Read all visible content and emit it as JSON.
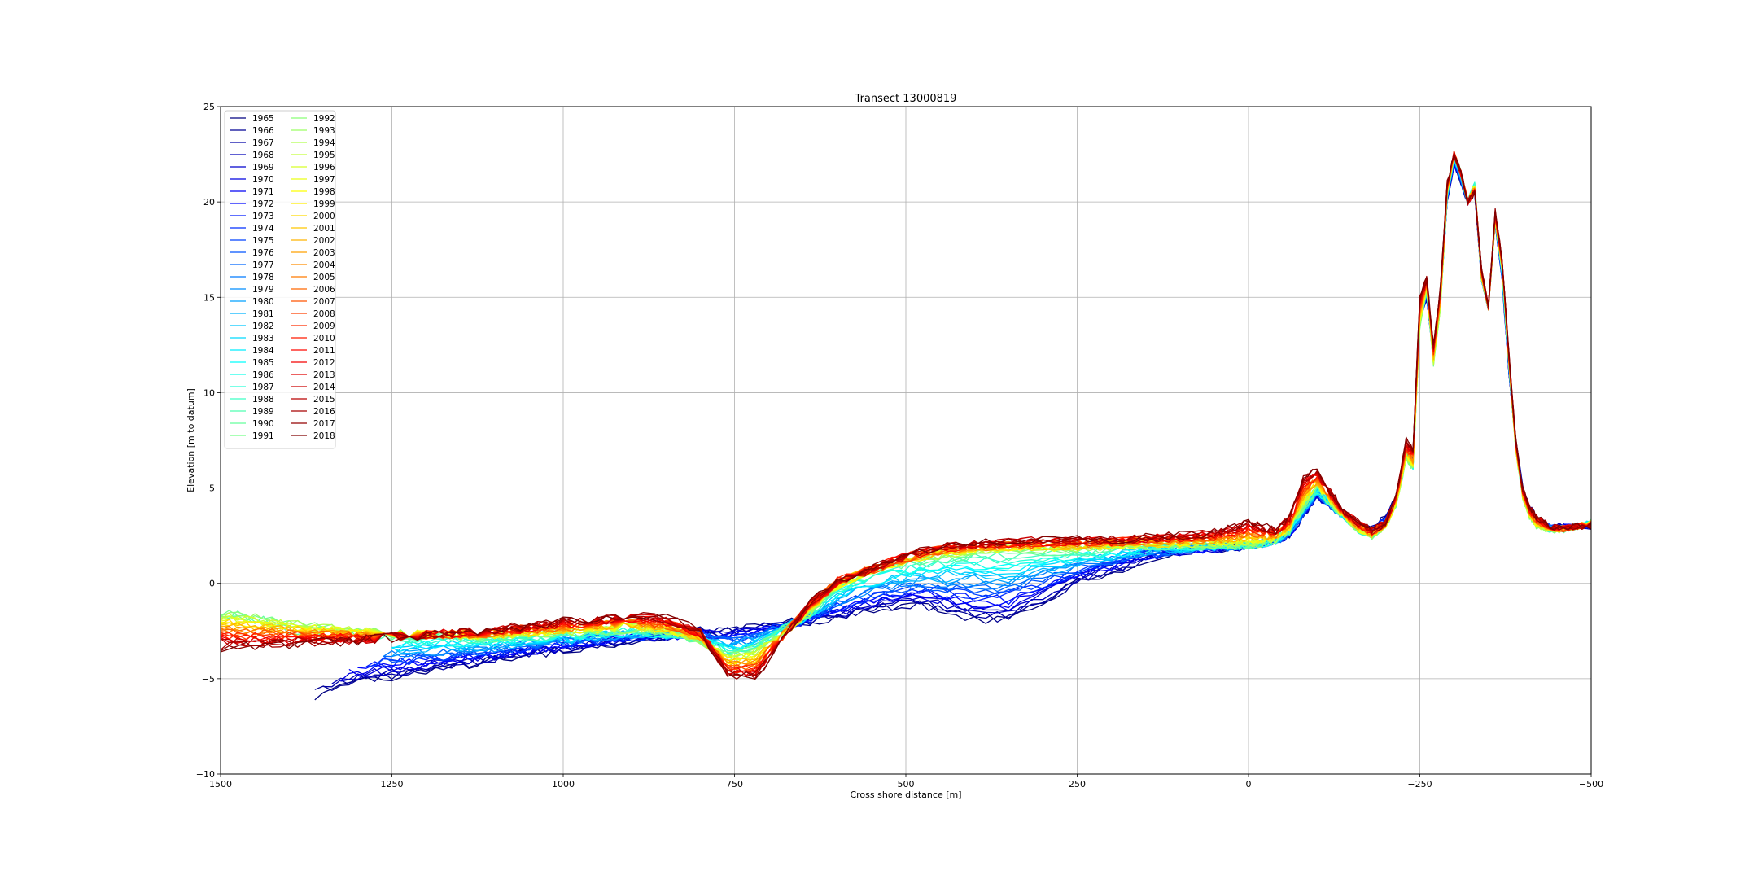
{
  "chart_data": {
    "type": "line",
    "title": "Transect 13000819",
    "xlabel": "Cross shore distance [m]",
    "ylabel": "Elevation [m to datum]",
    "xlim": [
      1500,
      -500
    ],
    "ylim": [
      -10,
      25
    ],
    "x_inverted": true,
    "xticks": [
      1500,
      1250,
      1000,
      750,
      500,
      250,
      0,
      -250,
      -500
    ],
    "xtick_labels": [
      "1500",
      "1250",
      "1000",
      "750",
      "500",
      "250",
      "0",
      "−250",
      "−500"
    ],
    "yticks": [
      -10,
      -5,
      0,
      5,
      10,
      15,
      20,
      25
    ],
    "ytick_labels": [
      "−10",
      "−5",
      "0",
      "5",
      "10",
      "15",
      "20",
      "25"
    ],
    "grid": true,
    "legend_position": "top-left",
    "legend_columns": 2,
    "colormap": "jet",
    "years": [
      1965,
      1966,
      1967,
      1968,
      1969,
      1970,
      1971,
      1972,
      1973,
      1974,
      1975,
      1976,
      1977,
      1978,
      1979,
      1980,
      1981,
      1982,
      1983,
      1984,
      1985,
      1986,
      1987,
      1988,
      1989,
      1990,
      1991,
      1992,
      1993,
      1994,
      1995,
      1996,
      1997,
      1998,
      1999,
      2000,
      2001,
      2002,
      2003,
      2004,
      2005,
      2006,
      2007,
      2008,
      2009,
      2010,
      2011,
      2012,
      2013,
      2014,
      2015,
      2016,
      2017,
      2018
    ],
    "reference_profiles": {
      "x": [
        1500,
        1400,
        1300,
        1200,
        1100,
        1000,
        900,
        850,
        800,
        760,
        720,
        680,
        640,
        600,
        560,
        520,
        480,
        440,
        400,
        350,
        300,
        250,
        200,
        150,
        100,
        50,
        20,
        0,
        -20,
        -40,
        -60,
        -80,
        -100,
        -120,
        -140,
        -160,
        -180,
        -200,
        -215,
        -230,
        -240,
        -250,
        -260,
        -270,
        -280,
        -290,
        -300,
        -310,
        -320,
        -330,
        -340,
        -350,
        -360,
        -370,
        -380,
        -390,
        -400,
        -410,
        -420,
        -440,
        -460,
        -480,
        -500
      ],
      "early": [
        null,
        -6.3,
        -5.2,
        -4.6,
        -4.0,
        -3.5,
        -3.0,
        -2.8,
        -2.5,
        -2.5,
        -2.3,
        -2.1,
        -2.0,
        -1.8,
        -1.5,
        -1.3,
        -1.2,
        -1.5,
        -1.8,
        -2.0,
        -1.0,
        0.0,
        0.6,
        1.2,
        1.6,
        1.8,
        1.9,
        2.0,
        2.1,
        2.2,
        2.5,
        3.5,
        4.5,
        4.0,
        3.5,
        3.0,
        2.8,
        3.5,
        4.5,
        7.0,
        6.5,
        14.0,
        15.0,
        12.0,
        15.0,
        20.0,
        22.0,
        21.0,
        20.0,
        20.5,
        16.0,
        14.5,
        19.0,
        16.0,
        11.0,
        7.5,
        5.0,
        4.0,
        3.5,
        3.0,
        3.0,
        3.0,
        3.0
      ],
      "middle": [
        -1.5,
        -2.0,
        -2.5,
        -2.7,
        -2.8,
        -2.6,
        -2.4,
        -2.6,
        -3.0,
        -3.8,
        -3.5,
        -2.5,
        -1.5,
        -0.2,
        0.6,
        1.0,
        1.3,
        1.5,
        1.7,
        1.8,
        1.8,
        1.8,
        1.9,
        2.0,
        2.0,
        2.0,
        2.0,
        2.0,
        2.1,
        2.3,
        2.8,
        4.0,
        5.0,
        4.2,
        3.5,
        2.8,
        2.5,
        3.0,
        4.0,
        6.5,
        6.0,
        13.5,
        15.5,
        11.5,
        14.5,
        20.5,
        22.5,
        21.5,
        20.0,
        21.0,
        16.0,
        14.5,
        19.0,
        16.5,
        11.5,
        7.0,
        4.5,
        3.5,
        3.0,
        2.8,
        2.8,
        3.0,
        3.2
      ],
      "late": [
        -3.4,
        -3.2,
        -3.0,
        -2.7,
        -2.4,
        -2.0,
        -1.7,
        -1.8,
        -2.5,
        -4.8,
        -5.0,
        -3.0,
        -1.0,
        0.2,
        0.6,
        1.2,
        1.7,
        2.0,
        2.1,
        2.2,
        2.3,
        2.3,
        2.3,
        2.4,
        2.5,
        2.7,
        3.0,
        3.2,
        3.0,
        2.8,
        3.5,
        5.5,
        6.0,
        4.8,
        3.8,
        3.2,
        2.8,
        3.2,
        4.5,
        7.5,
        7.0,
        15.0,
        16.0,
        12.5,
        15.5,
        21.0,
        22.5,
        21.5,
        20.0,
        20.5,
        16.5,
        14.5,
        19.5,
        17.0,
        12.0,
        7.5,
        5.0,
        4.0,
        3.5,
        3.0,
        2.9,
        3.0,
        3.0
      ]
    }
  }
}
